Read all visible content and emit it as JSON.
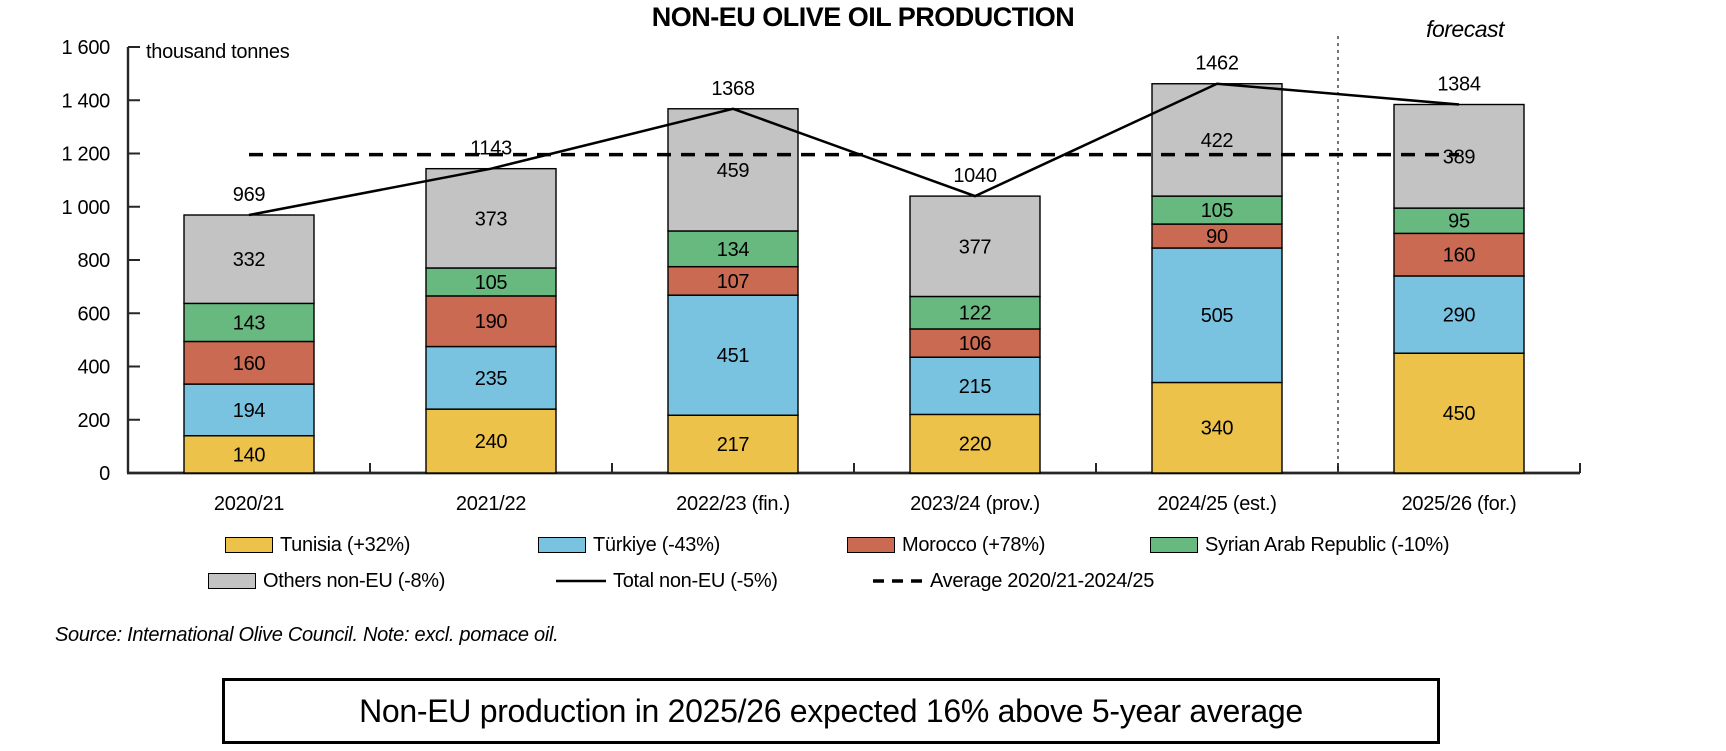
{
  "title": "NON-EU OLIVE OIL PRODUCTION",
  "forecast_label": "forecast",
  "source_note": "Source: International Olive Council. Note: excl. pomace oil.",
  "callout": "Non-EU production in 2025/26 expected 16% above 5-year average",
  "chart_data": {
    "type": "bar",
    "stacked": true,
    "title": "NON-EU OLIVE OIL PRODUCTION",
    "ylabel": "thousand tonnes",
    "ylim": [
      0,
      1600
    ],
    "ytick_values": [
      0,
      200,
      400,
      600,
      800,
      1000,
      1200,
      1400,
      1600
    ],
    "ytick_labels": [
      "0",
      "200",
      "400",
      "600",
      "800",
      "1 000",
      "1 200",
      "1 400",
      "1 600"
    ],
    "categories": [
      "2020/21",
      "2021/22",
      "2022/23 (fin.)",
      "2023/24 (prov.)",
      "2024/25 (est.)",
      "2025/26 (for.)"
    ],
    "series": [
      {
        "name": "Tunisia (+32%)",
        "color": "#EDC24A",
        "values": [
          140,
          240,
          217,
          220,
          340,
          450
        ]
      },
      {
        "name": "Türkiye (-43%)",
        "color": "#79C3E1",
        "values": [
          194,
          235,
          451,
          215,
          505,
          290
        ]
      },
      {
        "name": "Morocco (+78%)",
        "color": "#CB6A52",
        "values": [
          160,
          190,
          107,
          106,
          90,
          160
        ]
      },
      {
        "name": "Syrian Arab Republic (-10%)",
        "color": "#68B980",
        "values": [
          143,
          105,
          134,
          122,
          105,
          95
        ]
      },
      {
        "name": "Others non-EU (-8%)",
        "color": "#C3C3C3",
        "values": [
          332,
          373,
          459,
          377,
          422,
          389
        ]
      }
    ],
    "totals": [
      969,
      1143,
      1368,
      1040,
      1462,
      1384
    ],
    "total_line": {
      "name": "Total non-EU (-5%)",
      "values": [
        969,
        1143,
        1368,
        1040,
        1462,
        1384
      ]
    },
    "average_line": {
      "name": "Average 2020/21-2024/25",
      "value": 1196
    },
    "forecast_region_start_category": "2025/26 (for.)",
    "grid": false,
    "legend_position": "bottom"
  },
  "legend": {
    "rows": [
      [
        {
          "type": "box",
          "color": "#EDC24A",
          "label": "Tunisia (+32%)"
        },
        {
          "type": "box",
          "color": "#79C3E1",
          "label": "Türkiye (-43%)"
        },
        {
          "type": "box",
          "color": "#CB6A52",
          "label": "Morocco (+78%)"
        },
        {
          "type": "box",
          "color": "#68B980",
          "label": "Syrian Arab Republic (-10%)"
        }
      ],
      [
        {
          "type": "box",
          "color": "#C3C3C3",
          "label": "Others non-EU (-8%)"
        },
        {
          "type": "line",
          "label": "Total non-EU (-5%)"
        },
        {
          "type": "dash",
          "label": "Average 2020/21-2024/25"
        }
      ]
    ]
  }
}
